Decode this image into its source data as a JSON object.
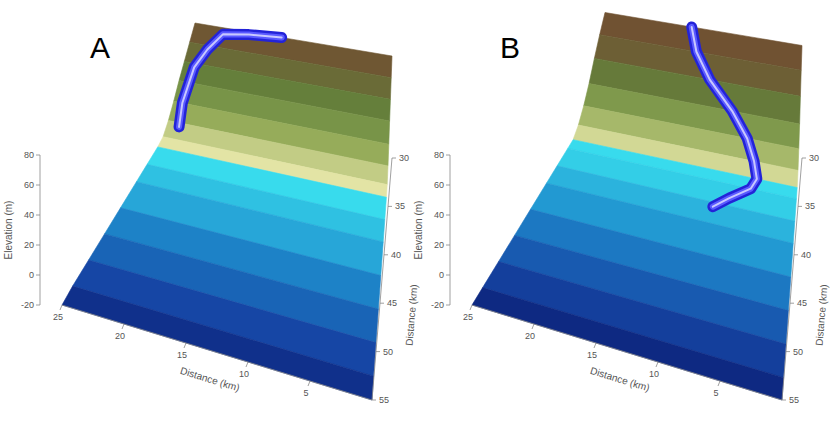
{
  "chart_data": [
    {
      "type": "surface",
      "title": "A",
      "x_label": "Distance (km)",
      "y_label": "Distance (km)",
      "z_label": "Elevation (m)",
      "xlim": [
        0,
        25
      ],
      "xticks": [
        5,
        10,
        15,
        20,
        25
      ],
      "ylim": [
        30,
        55
      ],
      "yticks": [
        30,
        35,
        40,
        45,
        50,
        55
      ],
      "zlim": [
        -20,
        80
      ],
      "zticks": [
        -20,
        0,
        20,
        40,
        60,
        80
      ],
      "y": [
        30,
        31,
        32,
        33,
        34,
        35,
        36,
        37,
        39,
        41,
        44,
        47,
        50,
        53,
        55
      ],
      "elevation": [
        48,
        40,
        32,
        24,
        15,
        7,
        1,
        -1,
        -3,
        -5,
        -8,
        -11,
        -14,
        -17,
        -20
      ],
      "channel": {
        "x": [
          14,
          18,
          21,
          22.5,
          23.5,
          24,
          23.5
        ],
        "y": [
          30,
          30.3,
          30.8,
          31.5,
          32.5,
          34,
          35.5
        ]
      }
    },
    {
      "type": "surface",
      "title": "B",
      "x_label": "Distance (km)",
      "y_label": "Distance (km)",
      "z_label": "Elevation (m)",
      "xlim": [
        0,
        25
      ],
      "xticks": [
        5,
        10,
        15,
        20,
        25
      ],
      "ylim": [
        30,
        55
      ],
      "yticks": [
        30,
        35,
        40,
        45,
        50,
        55
      ],
      "zlim": [
        -20,
        80
      ],
      "zticks": [
        -20,
        0,
        20,
        40,
        60,
        80
      ],
      "y": [
        30,
        31,
        32,
        33,
        34,
        35,
        36,
        37,
        39,
        41,
        44,
        47,
        50,
        53,
        55
      ],
      "elevation": [
        55,
        45,
        34,
        22,
        12,
        4,
        -1,
        -2,
        -4,
        -6,
        -9,
        -12,
        -15,
        -18,
        -20
      ],
      "channel": {
        "x": [
          14,
          13,
          11,
          8,
          6,
          5,
          4.5,
          5,
          7,
          8.5
        ],
        "y": [
          30,
          31,
          32,
          33,
          34,
          35,
          36,
          37,
          38.5,
          39.5
        ]
      }
    }
  ]
}
